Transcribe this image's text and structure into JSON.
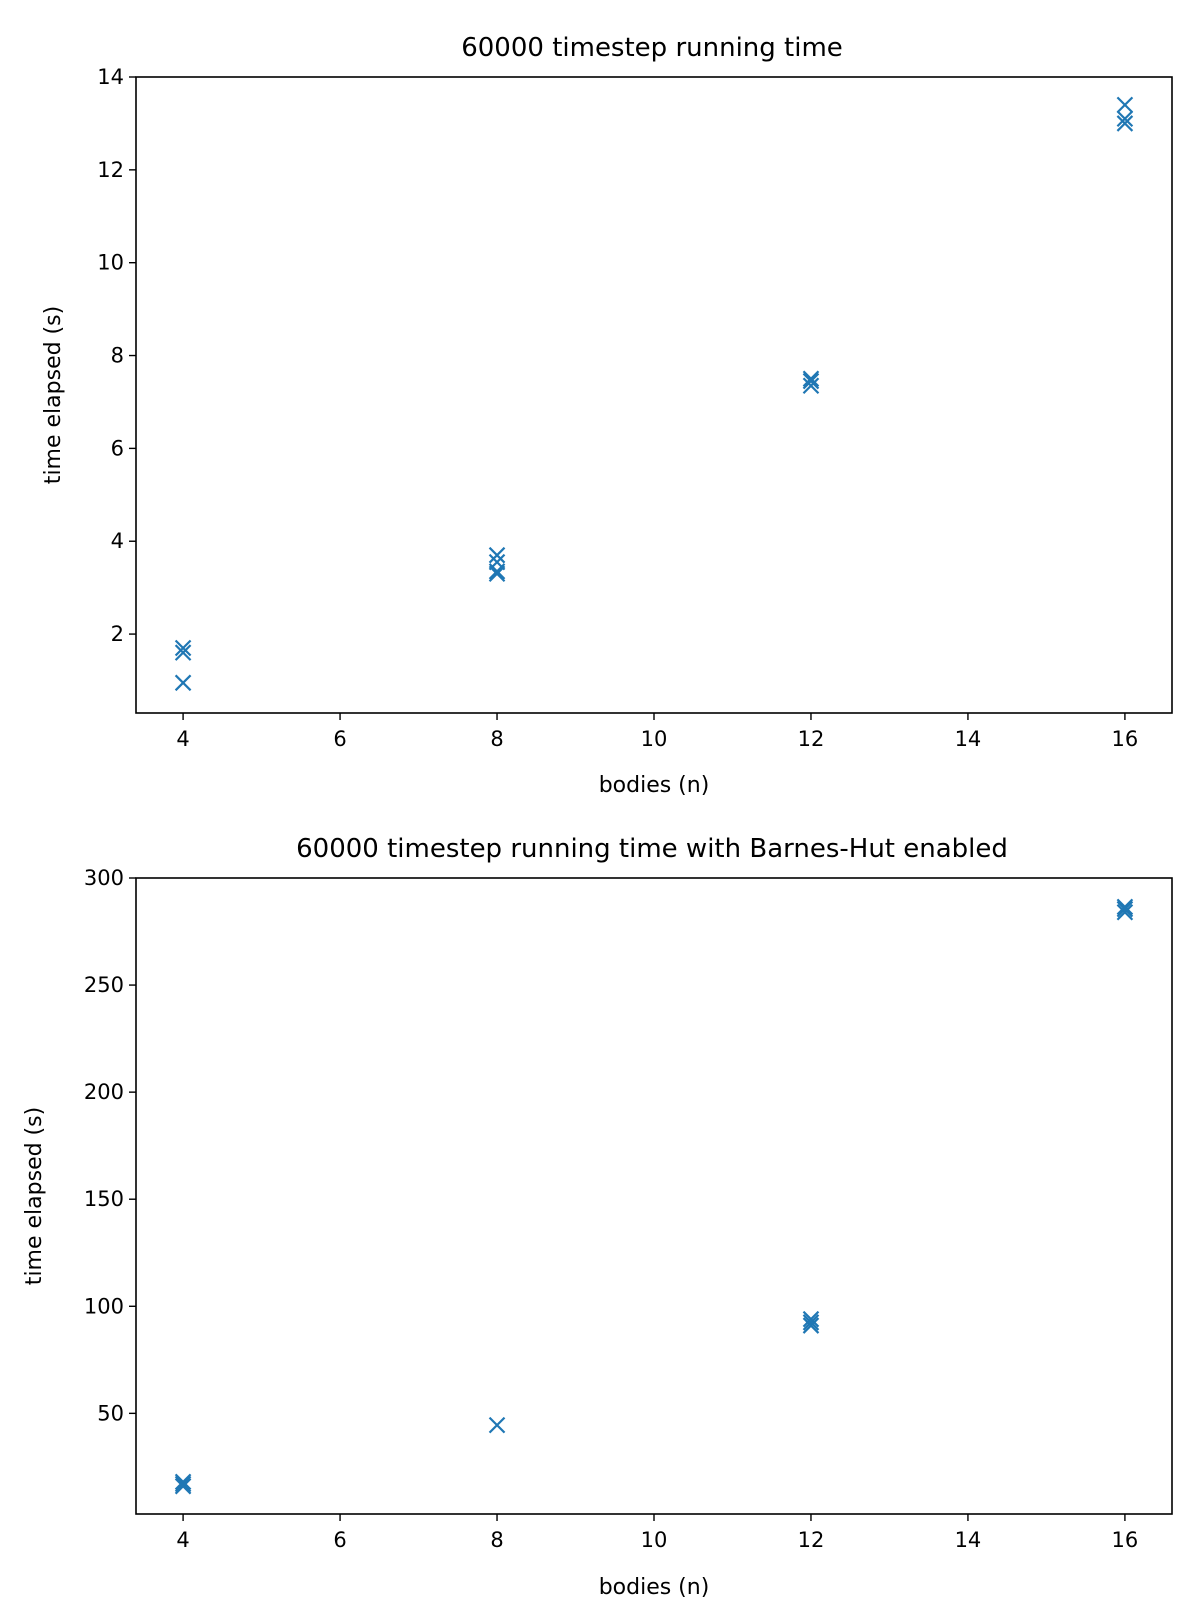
{
  "chart_data": [
    {
      "type": "scatter",
      "title": "60000 timestep running time",
      "xlabel": "bodies (n)",
      "ylabel": "time elapsed (s)",
      "xlim": [
        3.4,
        16.6
      ],
      "ylim": [
        0.3,
        14.0
      ],
      "xticks": [
        4,
        6,
        8,
        10,
        12,
        14,
        16
      ],
      "yticks": [
        2,
        4,
        6,
        8,
        10,
        12,
        14
      ],
      "marker": "x",
      "color": "#1f77b4",
      "grid": false,
      "series": [
        {
          "x": [
            4,
            4,
            4,
            8,
            8,
            8,
            8,
            12,
            12,
            12,
            16,
            16,
            16
          ],
          "y": [
            0.95,
            1.6,
            1.7,
            3.3,
            3.35,
            3.55,
            3.7,
            7.35,
            7.45,
            7.5,
            13.0,
            13.1,
            13.4
          ]
        }
      ]
    },
    {
      "type": "scatter",
      "title": "60000 timestep running time with Barnes-Hut enabled",
      "xlabel": "bodies (n)",
      "ylabel": "time elapsed (s)",
      "xlim": [
        3.4,
        16.6
      ],
      "ylim": [
        3.0,
        300.0
      ],
      "xticks": [
        4,
        6,
        8,
        10,
        12,
        14,
        16
      ],
      "yticks": [
        50,
        100,
        150,
        200,
        250,
        300
      ],
      "marker": "x",
      "color": "#1f77b4",
      "grid": false,
      "series": [
        {
          "x": [
            4,
            4,
            4,
            8,
            12,
            12,
            12,
            16,
            16,
            16
          ],
          "y": [
            16,
            17,
            18,
            44.5,
            91,
            92.5,
            94,
            284,
            285.5,
            286.5
          ]
        }
      ]
    }
  ]
}
